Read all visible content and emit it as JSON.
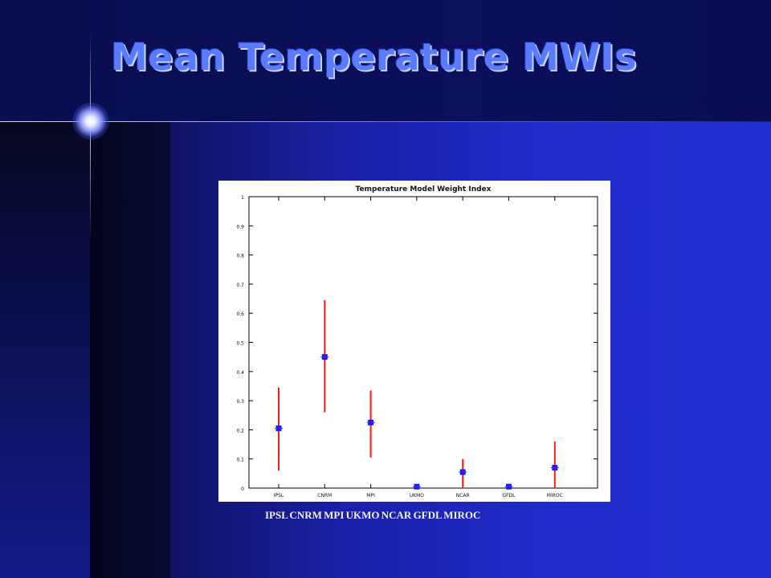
{
  "slide": {
    "title": "Mean Temperature MWIs",
    "caption": "IPSL CNRM MPI UKMO NCAR GFDL MIROC"
  },
  "colors": {
    "title": "#5b7bff",
    "error_bar": "#ff1a1a",
    "marker": "#1a1aff"
  },
  "chart_data": {
    "type": "scatter",
    "title": "Temperature Model Weight Index",
    "categories": [
      "IPSL",
      "CNRM",
      "MPI",
      "UKMO",
      "NCAR",
      "GFDL",
      "MIROC"
    ],
    "values": [
      0.205,
      0.45,
      0.225,
      0.005,
      0.055,
      0.005,
      0.07
    ],
    "error_low": [
      0.06,
      0.26,
      0.105,
      0.0,
      0.0,
      0.0,
      0.0
    ],
    "error_high": [
      0.345,
      0.645,
      0.335,
      0.0,
      0.1,
      0.0,
      0.16
    ],
    "ylim": [
      0,
      1
    ],
    "yticks": [
      "0",
      "0.1",
      "0.2",
      "0.3",
      "0.4",
      "0.5",
      "0.6",
      "0.7",
      "0.8",
      "0.9",
      "1"
    ],
    "xticks": [
      "IPSL",
      "CNRM",
      "MPI",
      "UKMO",
      "NCAR",
      "GFDL",
      "MIROC"
    ],
    "grid": false,
    "legend": "none"
  }
}
